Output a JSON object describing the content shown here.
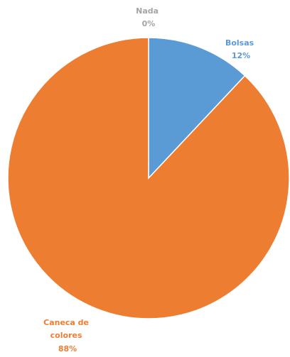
{
  "chart_data": {
    "type": "pie",
    "slices": [
      {
        "label": "Bolsas",
        "percent_label": "12%",
        "value": 12,
        "color": "#5B9BD5"
      },
      {
        "label": "Caneca de colores",
        "label_lines": [
          "Caneca de",
          "colores"
        ],
        "percent_label": "88%",
        "value": 88,
        "color": "#ED7D31"
      },
      {
        "label": "Nada",
        "percent_label": "0%",
        "value": 0,
        "color": "#A5A5A5"
      }
    ],
    "start_angle_deg": 0,
    "direction": "clockwise",
    "title": "",
    "legend": "none"
  }
}
